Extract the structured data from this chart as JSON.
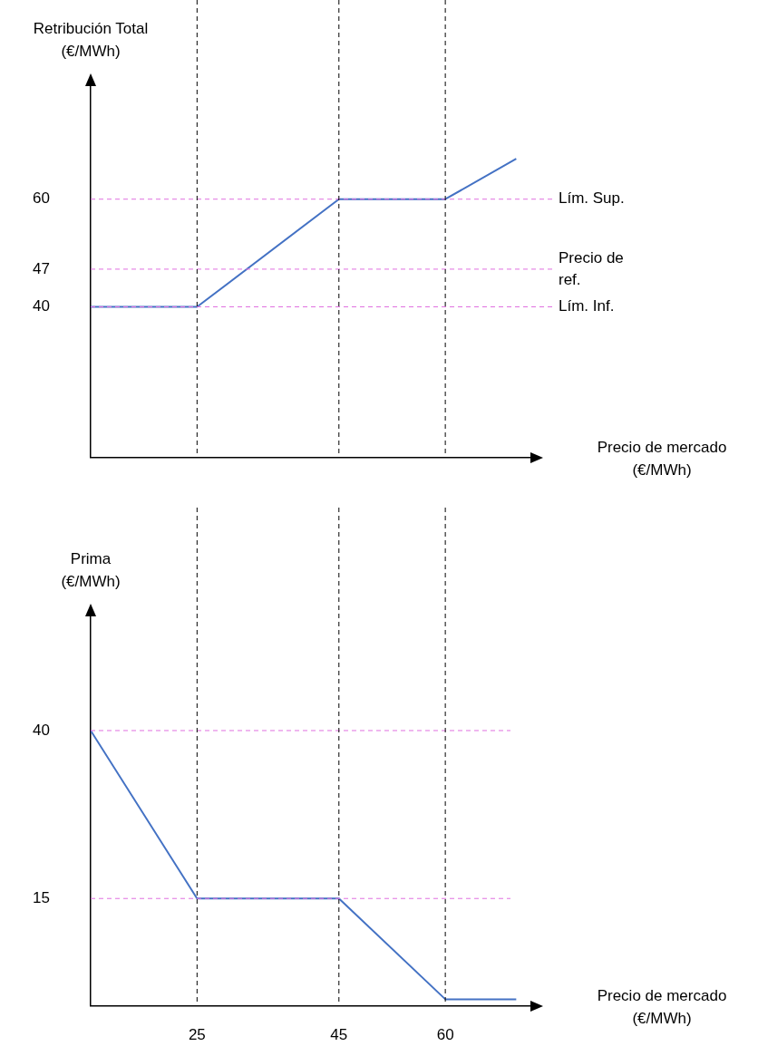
{
  "chart_data": [
    {
      "type": "line",
      "ylabel": "Retribución Total (€/MWh)",
      "xlabel": "Precio de mercado (€/MWh)",
      "x": [
        10,
        25,
        45,
        60,
        70
      ],
      "series": [
        {
          "color": "#4472c4",
          "values": [
            40,
            40,
            60,
            60,
            67.5
          ]
        }
      ],
      "xlim": [
        10,
        72
      ],
      "xticks": [
        25,
        45,
        60
      ],
      "ylim": [
        12,
        81
      ],
      "yticks": [
        40,
        47,
        60
      ],
      "tick_labels": "y",
      "grid": false,
      "legend": false,
      "marker": "none",
      "line_style": "solid",
      "ref_lines": [
        {
          "axis": "y",
          "value": 60,
          "label": "Lím. Sup.",
          "color": "#e070e0",
          "line_style": "dashed"
        },
        {
          "axis": "y",
          "value": 47,
          "label": "Precio de ref.",
          "color": "#e070e0",
          "line_style": "dashed"
        },
        {
          "axis": "y",
          "value": 40,
          "label": "Lím. Inf.",
          "color": "#e070e0",
          "line_style": "dashed"
        },
        {
          "axis": "x",
          "value": 25,
          "color": "#000000",
          "line_style": "dashed"
        },
        {
          "axis": "x",
          "value": 45,
          "color": "#000000",
          "line_style": "dashed"
        },
        {
          "axis": "x",
          "value": 60,
          "color": "#000000",
          "line_style": "dashed"
        }
      ]
    },
    {
      "type": "line",
      "ylabel": "Prima (€/MWh)",
      "xlabel": "Precio de mercado (€/MWh)",
      "x": [
        10,
        25,
        45,
        60,
        70
      ],
      "series": [
        {
          "color": "#4472c4",
          "values": [
            40,
            15,
            15,
            0,
            0
          ]
        }
      ],
      "xlim": [
        10,
        72
      ],
      "xticks": [
        25,
        45,
        60
      ],
      "ylim": [
        -1,
        57
      ],
      "yticks": [
        15,
        40
      ],
      "grid": false,
      "legend": false,
      "marker": "none",
      "line_style": "solid",
      "ref_lines": [
        {
          "axis": "y",
          "value": 40,
          "color": "#e070e0",
          "line_style": "dashed"
        },
        {
          "axis": "y",
          "value": 15,
          "color": "#e070e0",
          "line_style": "dashed"
        },
        {
          "axis": "x",
          "value": 25,
          "color": "#000000",
          "line_style": "dashed"
        },
        {
          "axis": "x",
          "value": 45,
          "color": "#000000",
          "line_style": "dashed"
        },
        {
          "axis": "x",
          "value": 60,
          "color": "#000000",
          "line_style": "dashed"
        }
      ]
    }
  ]
}
